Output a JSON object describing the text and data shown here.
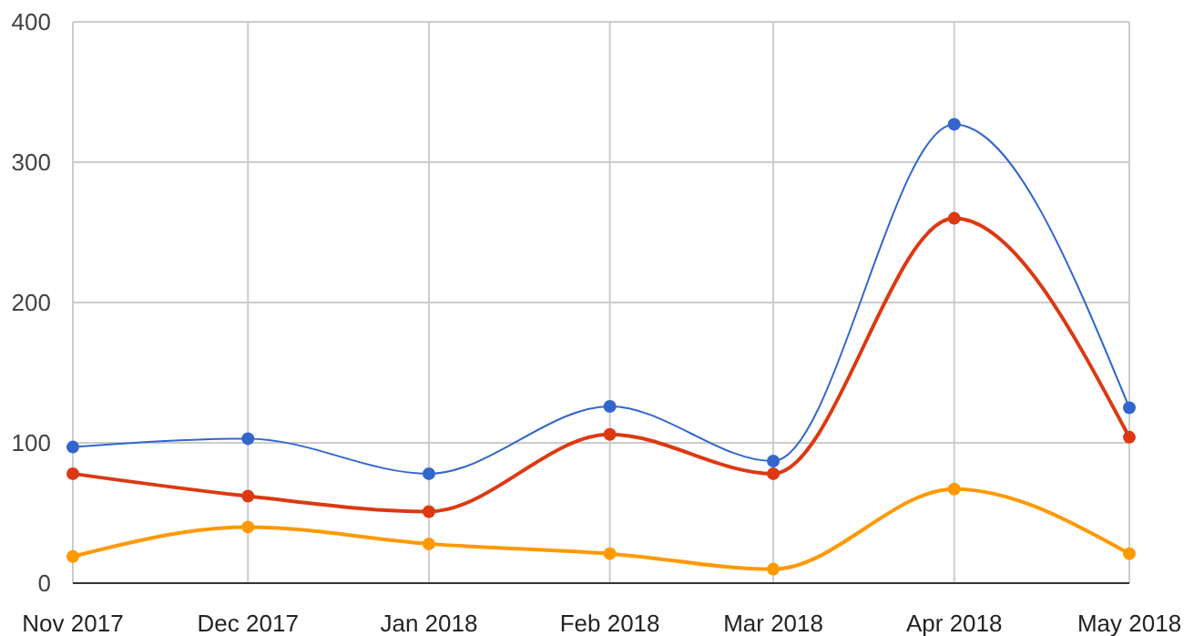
{
  "chart_data": {
    "type": "line",
    "x": [
      "2017-11",
      "2017-12",
      "2018-01",
      "2018-02",
      "2018-03",
      "2018-04",
      "2018-05"
    ],
    "xticks": [
      {
        "value": "2017-11",
        "label": "Nov 2017"
      },
      {
        "value": "2017-12",
        "label": "Dec 2017"
      },
      {
        "value": "2018-01",
        "label": "Jan 2018"
      },
      {
        "value": "2018-02",
        "label": "Feb 2018"
      },
      {
        "value": "2018-03",
        "label": "Mar 2018"
      },
      {
        "value": "2018-04",
        "label": "Apr 2018"
      },
      {
        "value": "2018-05",
        "label": "May 2018"
      }
    ],
    "xlim": [
      "2017-11",
      "2018-05"
    ],
    "ylim": [
      0,
      400
    ],
    "yticks": [
      0,
      100,
      200,
      300,
      400
    ],
    "grid": true,
    "marker": "circle",
    "series": [
      {
        "color": "#3366cc",
        "values": [
          97,
          103,
          78,
          126,
          87,
          327,
          125
        ]
      },
      {
        "color": "#dc3912",
        "values": [
          78,
          62,
          51,
          106,
          78,
          260,
          104
        ]
      },
      {
        "color": "#ff9900",
        "values": [
          19,
          40,
          28,
          21,
          10,
          67,
          21
        ]
      }
    ]
  }
}
